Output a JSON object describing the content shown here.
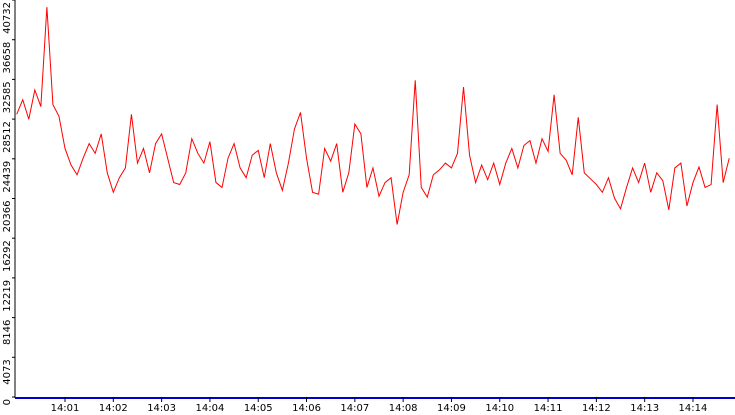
{
  "chart_data": {
    "type": "line",
    "x": [
      840,
      840.125,
      840.25,
      840.375,
      840.5,
      840.625,
      840.75,
      840.875,
      841,
      841.125,
      841.25,
      841.375,
      841.5,
      841.625,
      841.75,
      841.875,
      842,
      842.125,
      842.25,
      842.375,
      842.5,
      842.625,
      842.75,
      842.875,
      843,
      843.125,
      843.25,
      843.375,
      843.5,
      843.625,
      843.75,
      843.875,
      844,
      844.125,
      844.25,
      844.375,
      844.5,
      844.625,
      844.75,
      844.875,
      845,
      845.125,
      845.25,
      845.375,
      845.5,
      845.625,
      845.75,
      845.875,
      846,
      846.125,
      846.25,
      846.375,
      846.5,
      846.625,
      846.75,
      846.875,
      847,
      847.125,
      847.25,
      847.375,
      847.5,
      847.625,
      847.75,
      847.875,
      848,
      848.125,
      848.25,
      848.375,
      848.5,
      848.625,
      848.75,
      848.875,
      849,
      849.125,
      849.25,
      849.375,
      849.5,
      849.625,
      849.75,
      849.875,
      850,
      850.125,
      850.25,
      850.375,
      850.5,
      850.625,
      850.75,
      850.875,
      851,
      851.125,
      851.25,
      851.375,
      851.5,
      851.625,
      851.75,
      851.875,
      852,
      852.125,
      852.25,
      852.375,
      852.5,
      852.625,
      852.75,
      852.875,
      853,
      853.125,
      853.25,
      853.375,
      853.5,
      853.625,
      853.75,
      853.875,
      854,
      854.125,
      854.25,
      854.375,
      854.5,
      854.625,
      854.75
    ],
    "series": [
      {
        "color": "#ff0000",
        "values": [
          29000,
          30500,
          28500,
          31500,
          29800,
          40000,
          30000,
          28800,
          25500,
          23800,
          22800,
          24500,
          26000,
          25000,
          27000,
          23000,
          21000,
          22500,
          23500,
          29000,
          24000,
          25500,
          23000,
          26000,
          27000,
          24500,
          22000,
          21800,
          23000,
          26500,
          25000,
          24000,
          26200,
          22000,
          21500,
          24500,
          26000,
          23500,
          22500,
          24800,
          25300,
          22500,
          26000,
          23000,
          21200,
          24000,
          27500,
          29200,
          24500,
          21000,
          20800,
          25500,
          24200,
          26000,
          21000,
          23000,
          28000,
          27000,
          21500,
          23500,
          20600,
          22000,
          22500,
          17700,
          21000,
          22800,
          32500,
          21500,
          20500,
          22800,
          23300,
          24000,
          23500,
          25000,
          31800,
          24800,
          22000,
          23800,
          22300,
          24000,
          21800,
          24000,
          25500,
          23500,
          25800,
          26300,
          24000,
          26500,
          25200,
          31000,
          25000,
          24300,
          22800,
          28700,
          23000,
          22400,
          21800,
          21000,
          22500,
          20400,
          19300,
          21500,
          23500,
          22000,
          24000,
          21000,
          23000,
          22200,
          19200,
          23500,
          24000,
          19600,
          22000,
          23600,
          21500,
          21800,
          30000,
          22000,
          24500
        ]
      }
    ],
    "xlim": [
      840,
      854.87
    ],
    "xticks": [
      {
        "value": 841,
        "label": "14:01"
      },
      {
        "value": 842,
        "label": "14:02"
      },
      {
        "value": 843,
        "label": "14:03"
      },
      {
        "value": 844,
        "label": "14:04"
      },
      {
        "value": 845,
        "label": "14:05"
      },
      {
        "value": 846,
        "label": "14:06"
      },
      {
        "value": 847,
        "label": "14:07"
      },
      {
        "value": 848,
        "label": "14:08"
      },
      {
        "value": 849,
        "label": "14:09"
      },
      {
        "value": 850,
        "label": "14:10"
      },
      {
        "value": 851,
        "label": "14:11"
      },
      {
        "value": 852,
        "label": "14:12"
      },
      {
        "value": 853,
        "label": "14:13"
      },
      {
        "value": 854,
        "label": "14:14"
      }
    ],
    "ylim": [
      0,
      40732
    ],
    "yticks": [
      0,
      4073,
      8146,
      12219,
      16292,
      20366,
      24439,
      28512,
      32585,
      36658,
      40732
    ]
  }
}
